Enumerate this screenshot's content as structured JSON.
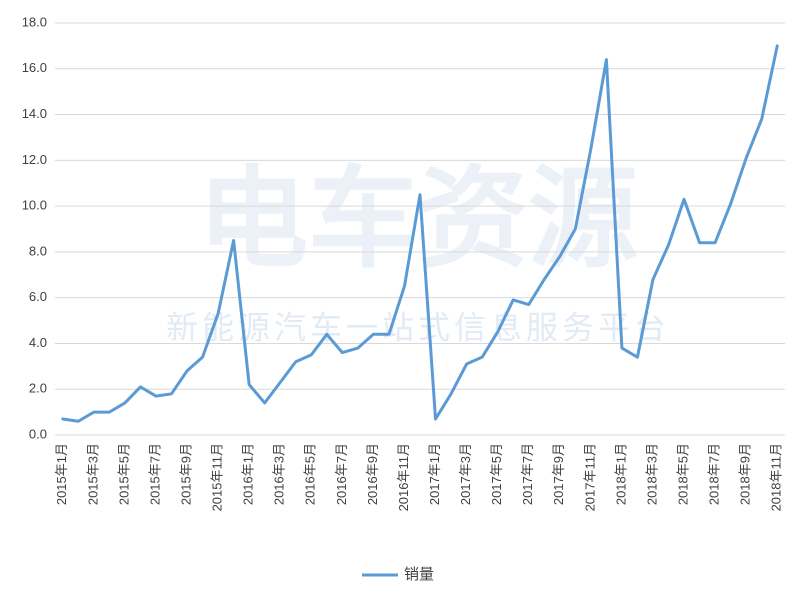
{
  "chart_data": {
    "type": "line",
    "watermark_logo": "电车资源",
    "watermark": "新能源汽车一站式信息服务平台",
    "categories": [
      "2015年1月",
      null,
      "2015年3月",
      null,
      "2015年5月",
      null,
      "2015年7月",
      null,
      "2015年9月",
      null,
      "2015年11月",
      null,
      "2016年1月",
      null,
      "2016年3月",
      null,
      "2016年5月",
      null,
      "2016年7月",
      null,
      "2016年9月",
      null,
      "2016年11月",
      null,
      "2017年1月",
      null,
      "2017年3月",
      null,
      "2017年5月",
      null,
      "2017年7月",
      null,
      "2017年9月",
      null,
      "2017年11月",
      null,
      "2018年1月",
      null,
      "2018年3月",
      null,
      "2018年5月",
      null,
      "2018年7月",
      null,
      "2018年9月",
      null,
      "2018年11月"
    ],
    "series": [
      {
        "name": "销量",
        "color": "#5b9bd5",
        "values": [
          0.7,
          0.6,
          1.0,
          1.0,
          1.4,
          2.1,
          1.7,
          1.8,
          2.8,
          3.4,
          5.3,
          8.5,
          2.2,
          1.4,
          2.3,
          3.2,
          3.5,
          4.4,
          3.6,
          3.8,
          4.4,
          4.4,
          6.5,
          10.5,
          0.7,
          1.8,
          3.1,
          3.4,
          4.5,
          5.9,
          5.7,
          6.8,
          7.8,
          9.0,
          12.5,
          16.4,
          3.8,
          3.4,
          6.8,
          8.3,
          10.3,
          8.4,
          8.4,
          10.1,
          12.1,
          13.8,
          17.0
        ]
      }
    ],
    "ylim": [
      0,
      18
    ],
    "yticks": [
      {
        "value": 0,
        "label": "0.0"
      },
      {
        "value": 2,
        "label": "2.0"
      },
      {
        "value": 4,
        "label": "4.0"
      },
      {
        "value": 6,
        "label": "6.0"
      },
      {
        "value": 8,
        "label": "8.0"
      },
      {
        "value": 10,
        "label": "10.0"
      },
      {
        "value": 12,
        "label": "12.0"
      },
      {
        "value": 14,
        "label": "14.0"
      },
      {
        "value": 16,
        "label": "16.0"
      },
      {
        "value": 18,
        "label": "18.0"
      }
    ],
    "grid": true,
    "legend": "bottom"
  }
}
